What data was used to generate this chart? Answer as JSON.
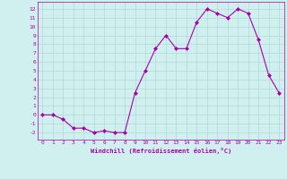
{
  "x": [
    0,
    1,
    2,
    3,
    4,
    5,
    6,
    7,
    8,
    9,
    10,
    11,
    12,
    13,
    14,
    15,
    16,
    17,
    18,
    19,
    20,
    21,
    22,
    23
  ],
  "y": [
    0,
    0,
    -0.5,
    -1.5,
    -1.5,
    -2,
    -1.8,
    -2,
    -2,
    2.5,
    5,
    7.5,
    9,
    7.5,
    7.5,
    10.5,
    12,
    11.5,
    11,
    12,
    11.5,
    8.5,
    4.5,
    2.5
  ],
  "line_color": "#aa00aa",
  "marker": "D",
  "marker_size": 2.0,
  "bg_color": "#d0f0f0",
  "grid_color": "#b0d8d8",
  "xlabel": "Windchill (Refroidissement éolien,°C)",
  "xlim": [
    -0.5,
    23.5
  ],
  "ylim": [
    -2.8,
    12.8
  ],
  "yticks": [
    -2,
    -1,
    0,
    1,
    2,
    3,
    4,
    5,
    6,
    7,
    8,
    9,
    10,
    11,
    12
  ],
  "xticks": [
    0,
    1,
    2,
    3,
    4,
    5,
    6,
    7,
    8,
    9,
    10,
    11,
    12,
    13,
    14,
    15,
    16,
    17,
    18,
    19,
    20,
    21,
    22,
    23
  ]
}
